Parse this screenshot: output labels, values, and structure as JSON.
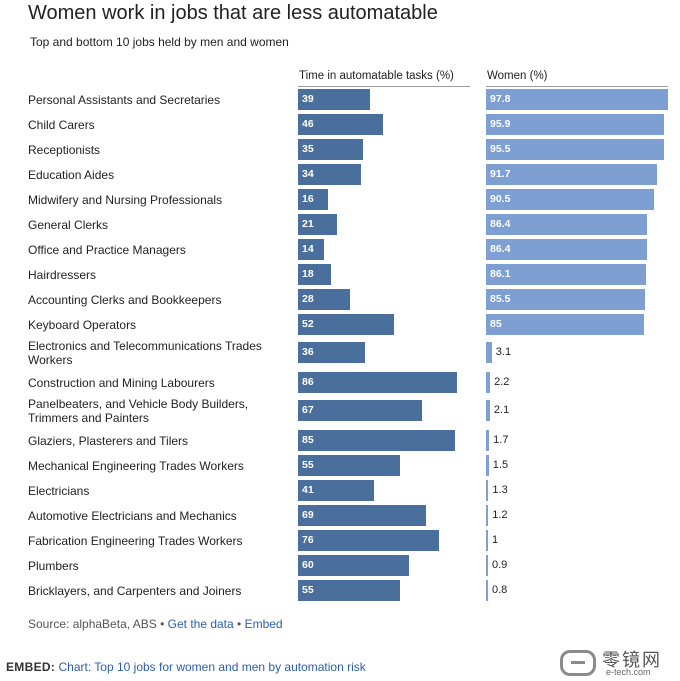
{
  "title": "Women work in jobs that are less automatable",
  "subtitle": "Top and bottom 10 jobs held by men and women",
  "source": {
    "prefix": "Source: alphaBeta, ABS",
    "sep": " • ",
    "data_link": "Get the data",
    "embed_link": "Embed"
  },
  "embed": {
    "key": "EMBED:",
    "chart": "Chart:",
    "link": "Top 10 jobs for women and men by automation risk"
  },
  "watermark": {
    "cn": "零镜网",
    "en": "e-tech.com"
  },
  "colors": {
    "bar": "#4a6f9c",
    "women_bar": "#7d9fd1",
    "link": "#2c5fa8"
  },
  "chart_data": {
    "type": "bar",
    "orientation": "horizontal",
    "title": "Women work in jobs that are less automatable",
    "subtitle": "Top and bottom 10 jobs held by men and women",
    "categories": [
      "Personal Assistants and Secretaries",
      "Child Carers",
      "Receptionists",
      "Education Aides",
      "Midwifery and Nursing Professionals",
      "General Clerks",
      "Office and Practice Managers",
      "Hairdressers",
      "Accounting Clerks and Bookkeepers",
      "Keyboard Operators",
      "Electronics and Telecommunications Trades Workers",
      "Construction and Mining Labourers",
      "Panelbeaters, and Vehicle Body Builders, Trimmers and Painters",
      "Glaziers, Plasterers and Tilers",
      "Mechanical Engineering Trades Workers",
      "Electricians",
      "Automotive Electricians and Mechanics",
      "Fabrication Engineering Trades Workers",
      "Plumbers",
      "Bricklayers, and Carpenters and Joiners"
    ],
    "series": [
      {
        "name": "Time in automatable tasks (%)",
        "values": [
          39,
          46,
          35,
          34,
          16,
          21,
          14,
          18,
          28,
          52,
          36,
          86,
          67,
          85,
          55,
          41,
          69,
          76,
          60,
          55
        ],
        "labels": [
          "39",
          "46",
          "35",
          "34",
          "16",
          "21",
          "14",
          "18",
          "28",
          "52",
          "36",
          "86",
          "67",
          "85",
          "55",
          "41",
          "69",
          "76",
          "60",
          "55"
        ]
      },
      {
        "name": "Women (%)",
        "values": [
          97.8,
          95.9,
          95.5,
          91.7,
          90.5,
          86.4,
          86.4,
          86.1,
          85.5,
          85,
          3.1,
          2.2,
          2.1,
          1.7,
          1.5,
          1.3,
          1.2,
          1,
          0.9,
          0.8
        ],
        "labels": [
          "97.8",
          "95.9",
          "95.5",
          "91.7",
          "90.5",
          "86.4",
          "86.4",
          "86.1",
          "85.5",
          "85",
          "3.1",
          "2.2",
          "2.1",
          "1.7",
          "1.5",
          "1.3",
          "1.2",
          "1",
          "0.9",
          "0.8"
        ]
      }
    ],
    "xlim": [
      0,
      100
    ],
    "grid": false,
    "legend": "column headers"
  }
}
